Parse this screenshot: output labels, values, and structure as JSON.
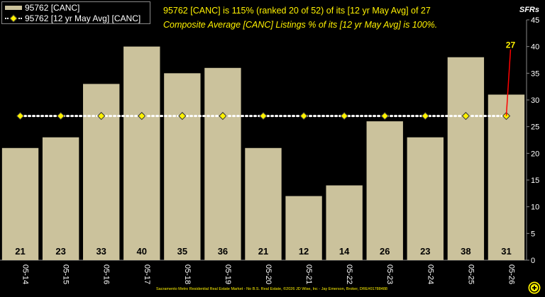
{
  "chart_data": {
    "type": "bar",
    "categories": [
      "05-14",
      "05-15",
      "05-16",
      "05-17",
      "05-18",
      "05-19",
      "05-20",
      "05-21",
      "05-22",
      "05-23",
      "05-24",
      "05-25",
      "05-26"
    ],
    "series": [
      {
        "name": "95762 [CANC]",
        "values": [
          21,
          23,
          33,
          40,
          35,
          36,
          21,
          12,
          14,
          26,
          23,
          38,
          31
        ],
        "color": "#CBC29C"
      },
      {
        "name": "95762 [12 yr May Avg] [CANC]",
        "values": [
          27,
          27,
          27,
          27,
          27,
          27,
          27,
          27,
          27,
          27,
          27,
          27,
          27
        ],
        "color": "#FFF200"
      }
    ],
    "ylim": [
      0,
      45
    ],
    "yticks": [
      0,
      5,
      10,
      15,
      20,
      25,
      30,
      35,
      40,
      45
    ],
    "ylabel": "SFRs",
    "avg_callout": "27",
    "grid": false,
    "legend_position": "top-left"
  },
  "headline": "95762 [CANC] is 115% (ranked 20 of 52) of its [12 yr May Avg] of 27",
  "subline": "Composite Average [CANC] Listings % of its [12 yr May Avg] is 100%.",
  "footer": "Sacramento Metro Residential Real Estate Market - No B.S. Real Estate, ©2026 JD Wise, Inc - Jay Emerson, Broker, DRE#01788488",
  "colors": {
    "bar": "#CBC29C",
    "avg_line": "#FFFFFF",
    "avg_marker": "#FFF200",
    "callout": "#FF0000",
    "text_accent": "#FFF200"
  }
}
